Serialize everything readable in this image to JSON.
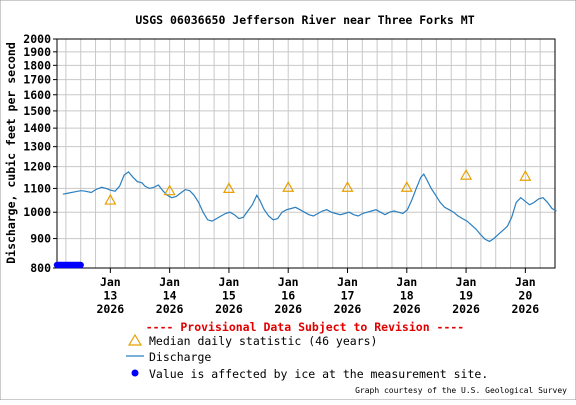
{
  "chart_data": {
    "type": "line",
    "title": "USGS 06036650 Jefferson River near Three Forks MT",
    "ylabel": "Discharge, cubic feet per second",
    "xlabel": "",
    "ylim": [
      800,
      2000
    ],
    "y_scale": "log",
    "y_ticks": [
      800,
      900,
      1000,
      1100,
      1200,
      1300,
      1400,
      1500,
      1600,
      1700,
      1800,
      1900,
      2000
    ],
    "x_ticks": [
      {
        "day": 13,
        "l1": "Jan",
        "l2": "13",
        "l3": "2026"
      },
      {
        "day": 14,
        "l1": "Jan",
        "l2": "14",
        "l3": "2026"
      },
      {
        "day": 15,
        "l1": "Jan",
        "l2": "15",
        "l3": "2026"
      },
      {
        "day": 16,
        "l1": "Jan",
        "l2": "16",
        "l3": "2026"
      },
      {
        "day": 17,
        "l1": "Jan",
        "l2": "17",
        "l3": "2026"
      },
      {
        "day": 18,
        "l1": "Jan",
        "l2": "18",
        "l3": "2026"
      },
      {
        "day": 19,
        "l1": "Jan",
        "l2": "19",
        "l3": "2026"
      },
      {
        "day": 20,
        "l1": "Jan",
        "l2": "20",
        "l3": "2026"
      }
    ],
    "x_range_days": [
      12.1,
      20.5
    ],
    "grid": true,
    "series": [
      {
        "name": "Discharge",
        "color": "#2a7fc0",
        "points": [
          [
            12.0,
            1075
          ],
          [
            12.4,
            1080
          ],
          [
            12.8,
            1085
          ],
          [
            13.2,
            1090
          ],
          [
            13.5,
            1088
          ],
          [
            13.9,
            1082
          ],
          [
            14.2,
            1095
          ],
          [
            14.6,
            1105
          ],
          [
            14.9,
            1100
          ],
          [
            15.2,
            1092
          ],
          [
            15.5,
            1088
          ],
          [
            15.8,
            1110
          ],
          [
            16.1,
            1160
          ],
          [
            16.4,
            1175
          ],
          [
            16.7,
            1150
          ],
          [
            17.0,
            1130
          ],
          [
            17.3,
            1125
          ],
          [
            17.5,
            1110
          ],
          [
            17.8,
            1100
          ],
          [
            18.1,
            1105
          ],
          [
            18.4,
            1115
          ],
          [
            18.7,
            1090
          ],
          [
            19.0,
            1070
          ],
          [
            19.3,
            1060
          ],
          [
            19.6,
            1065
          ],
          [
            19.9,
            1080
          ],
          [
            20.2,
            1095
          ],
          [
            20.5,
            1090
          ],
          [
            20.8,
            1070
          ],
          [
            21.1,
            1040
          ],
          [
            21.4,
            1000
          ],
          [
            21.7,
            970
          ],
          [
            22.0,
            965
          ],
          [
            22.3,
            975
          ],
          [
            22.6,
            985
          ],
          [
            22.9,
            995
          ],
          [
            23.2,
            1000
          ],
          [
            23.5,
            990
          ],
          [
            23.8,
            975
          ],
          [
            24.1,
            980
          ],
          [
            24.4,
            1005
          ],
          [
            24.7,
            1030
          ],
          [
            25.0,
            1070
          ],
          [
            25.2,
            1050
          ],
          [
            25.5,
            1010
          ],
          [
            25.8,
            985
          ],
          [
            26.1,
            970
          ],
          [
            26.4,
            975
          ],
          [
            26.7,
            1000
          ],
          [
            27.0,
            1010
          ],
          [
            27.3,
            1015
          ],
          [
            27.6,
            1020
          ],
          [
            27.9,
            1010
          ],
          [
            28.2,
            1000
          ],
          [
            28.5,
            990
          ],
          [
            28.8,
            985
          ],
          [
            29.1,
            995
          ],
          [
            29.4,
            1005
          ],
          [
            29.7,
            1010
          ],
          [
            30.0,
            1000
          ],
          [
            30.3,
            995
          ],
          [
            30.6,
            990
          ],
          [
            30.9,
            995
          ],
          [
            31.2,
            1000
          ],
          [
            31.5,
            990
          ],
          [
            31.8,
            985
          ],
          [
            32.1,
            995
          ],
          [
            32.4,
            1000
          ],
          [
            32.7,
            1005
          ],
          [
            33.0,
            1010
          ],
          [
            33.3,
            1000
          ],
          [
            33.6,
            990
          ],
          [
            33.9,
            1000
          ],
          [
            34.2,
            1005
          ],
          [
            34.5,
            1000
          ],
          [
            34.8,
            995
          ],
          [
            35.1,
            1010
          ],
          [
            35.4,
            1050
          ],
          [
            35.7,
            1100
          ],
          [
            36.0,
            1150
          ],
          [
            36.2,
            1165
          ],
          [
            36.4,
            1140
          ],
          [
            36.7,
            1100
          ],
          [
            37.0,
            1070
          ],
          [
            37.3,
            1040
          ],
          [
            37.6,
            1020
          ],
          [
            37.9,
            1010
          ],
          [
            38.2,
            1000
          ],
          [
            38.5,
            985
          ],
          [
            38.8,
            975
          ],
          [
            39.1,
            965
          ],
          [
            39.4,
            950
          ],
          [
            39.7,
            935
          ],
          [
            40.0,
            915
          ],
          [
            40.3,
            898
          ],
          [
            40.6,
            890
          ],
          [
            40.9,
            900
          ],
          [
            41.2,
            915
          ],
          [
            41.5,
            930
          ],
          [
            41.8,
            945
          ],
          [
            42.1,
            980
          ],
          [
            42.4,
            1040
          ],
          [
            42.7,
            1060
          ],
          [
            43.0,
            1045
          ],
          [
            43.3,
            1030
          ],
          [
            43.6,
            1040
          ],
          [
            43.9,
            1055
          ],
          [
            44.2,
            1060
          ],
          [
            44.5,
            1040
          ],
          [
            44.8,
            1015
          ],
          [
            45.1,
            1005
          ]
        ],
        "point_time_scale": "points are [hours_index*3 as 0.125-day steps, value]; converted in script"
      }
    ],
    "markers": {
      "name": "Median daily statistic (46 years)",
      "color": "#e8a000",
      "points": [
        [
          13.0,
          1050
        ],
        [
          14.0,
          1090
        ],
        [
          15.0,
          1100
        ],
        [
          16.0,
          1105
        ],
        [
          17.0,
          1105
        ],
        [
          18.0,
          1105
        ],
        [
          19.0,
          1160
        ],
        [
          20.0,
          1155
        ]
      ]
    },
    "ice": {
      "name": "Value is affected by ice at the measurement site.",
      "color": "#0000ff",
      "range_days": [
        12.1,
        12.5
      ],
      "value": 800
    }
  },
  "labels": {
    "provisional": "---- Provisional Data Subject to Revision ----",
    "legend_median": "Median daily statistic (46 years)",
    "legend_discharge": "Discharge",
    "legend_ice": "Value is affected by ice at the measurement site.",
    "credit": "Graph courtesy of the U.S. Geological Survey"
  },
  "colors": {
    "provisional": "#e00000",
    "grid": "#c8c8c8",
    "axis": "#000000"
  }
}
